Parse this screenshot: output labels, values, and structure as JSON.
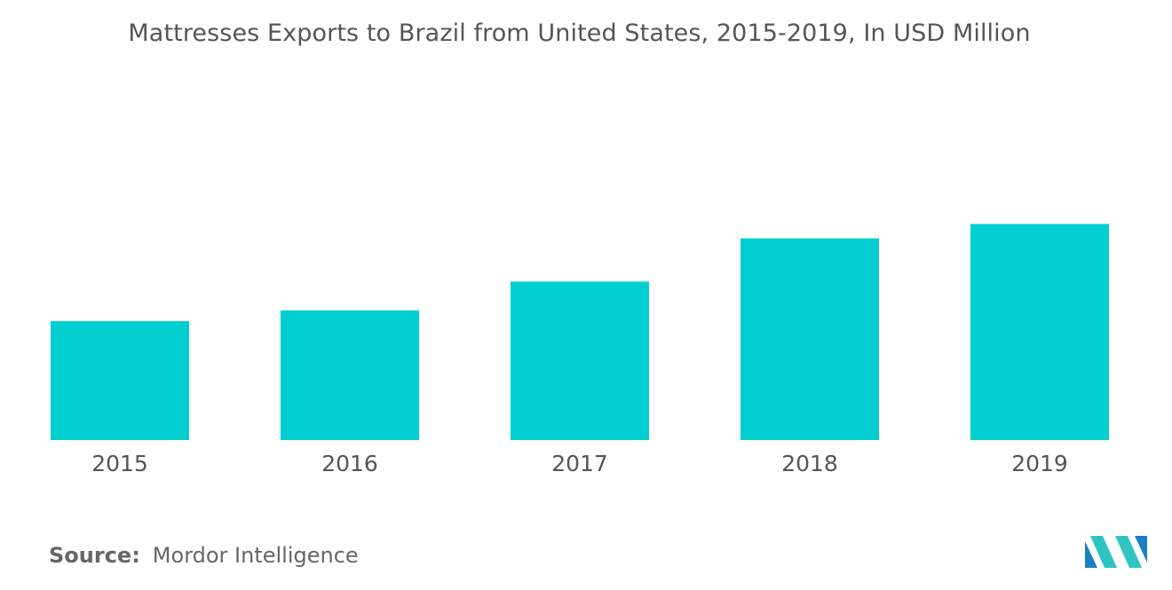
{
  "chart_data": {
    "type": "bar",
    "title": "Mattresses Exports to Brazil from United States, 2015-2019, In USD Million",
    "categories": [
      "2015",
      "2016",
      "2017",
      "2018",
      "2019"
    ],
    "values": [
      3.3,
      3.6,
      4.4,
      5.6,
      6.0
    ],
    "xlabel": "",
    "ylabel": "",
    "ylim": [
      0,
      10
    ],
    "grid": false,
    "legend": "none",
    "bar_color": "#00CED1"
  },
  "source": {
    "label": "Source:",
    "text": "Mordor Intelligence"
  },
  "logo": {
    "icon": "mordor-intelligence-logo",
    "colors": [
      "#1B7FC4",
      "#2FC4C4"
    ]
  }
}
